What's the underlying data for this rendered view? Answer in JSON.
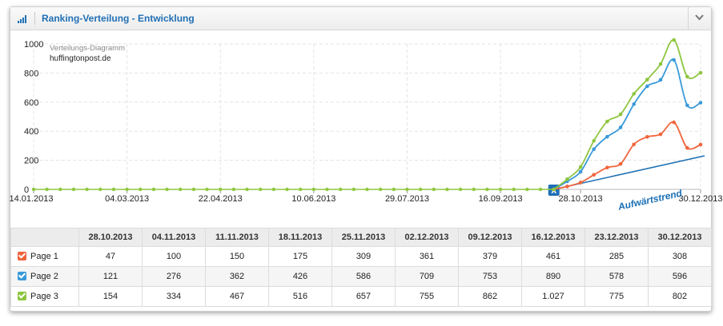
{
  "header": {
    "title": "Ranking-Verteilung - Entwicklung",
    "icon": "signal-bars-icon",
    "collapse_icon": "chevron-down-icon"
  },
  "annotation": {
    "label": "Verteilungs-Diagramm",
    "domain": "huffingtonpost.de"
  },
  "marker": {
    "letter": "A"
  },
  "trend_label": "Aufwärtstrend",
  "colors": {
    "page1": "#f0643c",
    "page2": "#3a9ad9",
    "page3": "#8ec63f",
    "trend": "#1a6fb5",
    "marker": "#1f6fb5"
  },
  "chart_data": {
    "type": "line",
    "ylim": [
      0,
      1000
    ],
    "yticks": [
      "0",
      "200",
      "400",
      "600",
      "800",
      "1000"
    ],
    "xtick_labels": [
      {
        "label": "14.01.2013",
        "week": 0
      },
      {
        "label": "04.03.2013",
        "week": 7
      },
      {
        "label": "22.04.2013",
        "week": 14
      },
      {
        "label": "10.06.2013",
        "week": 21
      },
      {
        "label": "29.07.2013",
        "week": 28
      },
      {
        "label": "16.09.2013",
        "week": 35
      },
      {
        "label": "28.10.2013",
        "week": 41
      },
      {
        "label": "30.12.2013",
        "week": 50
      }
    ],
    "total_weeks": 50,
    "zero_weeks_end": 39,
    "series": [
      {
        "name": "Page 1",
        "weeks": [
          39,
          40,
          41,
          42,
          43,
          44,
          45,
          46,
          47,
          48,
          49,
          50
        ],
        "values": [
          0,
          20,
          47,
          100,
          150,
          175,
          309,
          361,
          379,
          461,
          285,
          308
        ]
      },
      {
        "name": "Page 2",
        "weeks": [
          39,
          40,
          41,
          42,
          43,
          44,
          45,
          46,
          47,
          48,
          49,
          50
        ],
        "values": [
          0,
          55,
          121,
          276,
          362,
          426,
          586,
          709,
          753,
          890,
          578,
          596
        ]
      },
      {
        "name": "Page 3",
        "weeks": [
          39,
          40,
          41,
          42,
          43,
          44,
          45,
          46,
          47,
          48,
          49,
          50
        ],
        "values": [
          0,
          70,
          154,
          334,
          467,
          516,
          657,
          755,
          862,
          1027,
          775,
          802
        ]
      }
    ]
  },
  "table": {
    "headers": [
      "28.10.2013",
      "04.11.2013",
      "11.11.2013",
      "18.11.2013",
      "25.11.2013",
      "02.12.2013",
      "09.12.2013",
      "16.12.2013",
      "23.12.2013",
      "30.12.2013"
    ],
    "rows": [
      {
        "label": "Page 1",
        "values": [
          "47",
          "100",
          "150",
          "175",
          "309",
          "361",
          "379",
          "461",
          "285",
          "308"
        ]
      },
      {
        "label": "Page 2",
        "values": [
          "121",
          "276",
          "362",
          "426",
          "586",
          "709",
          "753",
          "890",
          "578",
          "596"
        ]
      },
      {
        "label": "Page 3",
        "values": [
          "154",
          "334",
          "467",
          "516",
          "657",
          "755",
          "862",
          "1.027",
          "775",
          "802"
        ]
      }
    ]
  }
}
